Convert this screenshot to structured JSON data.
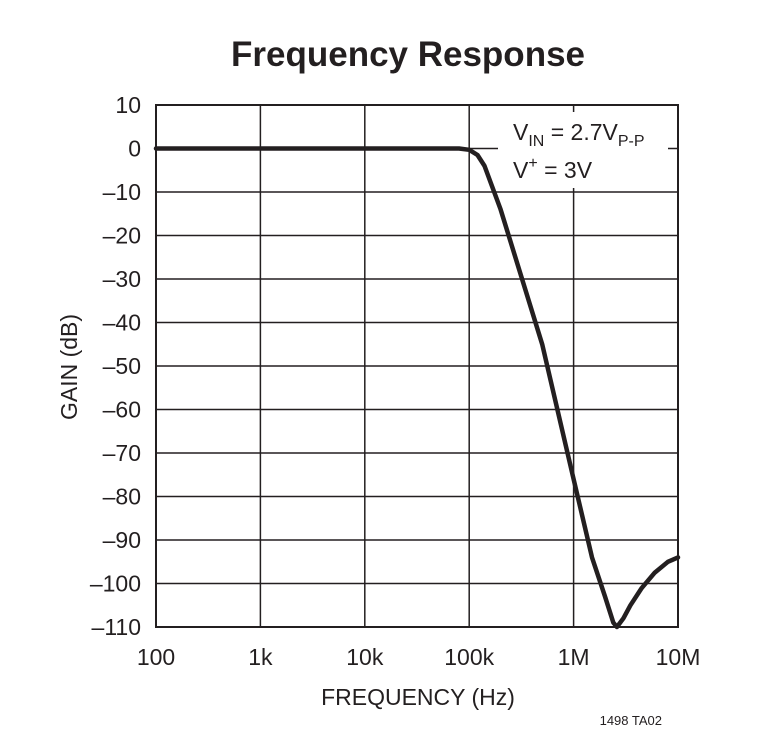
{
  "chart_data": {
    "type": "line",
    "title": "Frequency Response",
    "xlabel": "FREQUENCY (Hz)",
    "ylabel": "GAIN (dB)",
    "x_scale": "log",
    "xlim": [
      100,
      10000000
    ],
    "ylim": [
      -110,
      10
    ],
    "grid": true,
    "x_ticks": [
      {
        "value": 100,
        "label": "100"
      },
      {
        "value": 1000,
        "label": "1k"
      },
      {
        "value": 10000,
        "label": "10k"
      },
      {
        "value": 100000,
        "label": "100k"
      },
      {
        "value": 1000000,
        "label": "1M"
      },
      {
        "value": 10000000,
        "label": "10M"
      }
    ],
    "y_ticks": [
      {
        "value": 10,
        "label": "10"
      },
      {
        "value": 0,
        "label": "0"
      },
      {
        "value": -10,
        "label": "–10"
      },
      {
        "value": -20,
        "label": "–20"
      },
      {
        "value": -30,
        "label": "–30"
      },
      {
        "value": -40,
        "label": "–40"
      },
      {
        "value": -50,
        "label": "–50"
      },
      {
        "value": -60,
        "label": "–60"
      },
      {
        "value": -70,
        "label": "–70"
      },
      {
        "value": -80,
        "label": "–80"
      },
      {
        "value": -90,
        "label": "–90"
      },
      {
        "value": -100,
        "label": "–100"
      },
      {
        "value": -110,
        "label": "–110"
      }
    ],
    "series": [
      {
        "points": [
          {
            "x": 100,
            "y": 0
          },
          {
            "x": 1000,
            "y": 0
          },
          {
            "x": 10000,
            "y": 0
          },
          {
            "x": 60000,
            "y": 0
          },
          {
            "x": 80000,
            "y": 0
          },
          {
            "x": 100000,
            "y": -0.3
          },
          {
            "x": 120000,
            "y": -1.5
          },
          {
            "x": 140000,
            "y": -4
          },
          {
            "x": 200000,
            "y": -14
          },
          {
            "x": 500000,
            "y": -45
          },
          {
            "x": 1000000,
            "y": -76
          },
          {
            "x": 1500000,
            "y": -94
          },
          {
            "x": 2000000,
            "y": -103
          },
          {
            "x": 2400000,
            "y": -109
          },
          {
            "x": 2600000,
            "y": -110
          },
          {
            "x": 3000000,
            "y": -108
          },
          {
            "x": 3500000,
            "y": -105
          },
          {
            "x": 4500000,
            "y": -101
          },
          {
            "x": 6000000,
            "y": -97.5
          },
          {
            "x": 8000000,
            "y": -95
          },
          {
            "x": 10000000,
            "y": -94
          }
        ]
      }
    ],
    "annotation": {
      "line1_main": "V",
      "line1_sub": "IN",
      "line1_mid": " = 2.7V",
      "line1_sub2": "P-P",
      "line2_main": "V",
      "line2_sup": "+",
      "line2_rest": " = 3V",
      "placement": "top-right"
    },
    "note": "1498 TA02"
  },
  "style": {
    "line_color": "#231f20",
    "grid_color": "#231f20",
    "background": "#ffffff"
  }
}
